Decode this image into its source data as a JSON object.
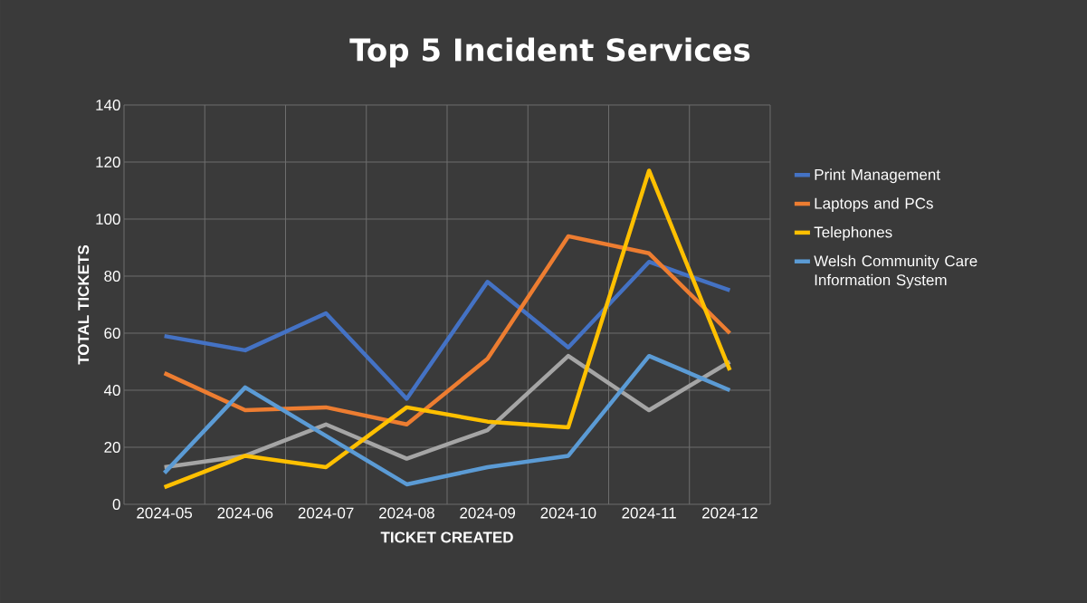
{
  "chart_data": {
    "type": "line",
    "title": "Top 5 Incident Services",
    "xlabel": "TICKET CREATED",
    "ylabel": "TOTAL TICKETS",
    "categories": [
      "2024-05",
      "2024-06",
      "2024-07",
      "2024-08",
      "2024-09",
      "2024-10",
      "2024-11",
      "2024-12"
    ],
    "series": [
      {
        "name": "Print Management",
        "color": "#4472c4",
        "values": [
          59,
          54,
          67,
          37,
          78,
          55,
          85,
          75
        ]
      },
      {
        "name": "Laptops and PCs",
        "color": "#ed7d31",
        "values": [
          46,
          33,
          34,
          28,
          51,
          94,
          88,
          60
        ]
      },
      {
        "color": "#a5a5a5",
        "values": [
          13,
          17,
          28,
          16,
          26,
          52,
          33,
          50
        ]
      },
      {
        "name": "Telephones",
        "color": "#ffc000",
        "values": [
          6,
          17,
          13,
          34,
          29,
          27,
          117,
          47
        ]
      },
      {
        "name": "Welsh Community Care Information System",
        "color": "#5b9bd5",
        "values": [
          11,
          41,
          24,
          7,
          13,
          17,
          52,
          40
        ]
      }
    ],
    "ylim": [
      0,
      140
    ],
    "yticks": [
      0,
      20,
      40,
      60,
      80,
      100,
      120,
      140
    ],
    "grid": true,
    "legend": "right",
    "marker": "none",
    "line_style": "solid"
  }
}
